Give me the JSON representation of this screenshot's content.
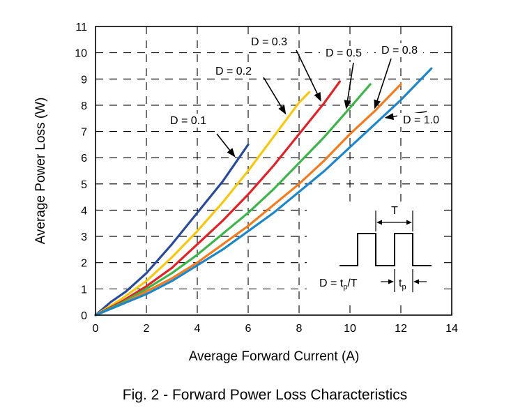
{
  "caption": "Fig. 2 - Forward Power Loss Characteristics",
  "chart_data": {
    "type": "line",
    "title": "",
    "xlabel": "Average Forward Current (A)",
    "ylabel": "Average Power Loss (W)",
    "xlim": [
      0,
      14
    ],
    "ylim": [
      0,
      11
    ],
    "xticks": [
      0,
      2,
      4,
      6,
      8,
      10,
      12,
      14
    ],
    "yticks": [
      0,
      1,
      2,
      3,
      4,
      5,
      6,
      7,
      8,
      9,
      10,
      11
    ],
    "grid": true,
    "series": [
      {
        "name": "D = 0.1",
        "color": "#2a4a9c",
        "x": [
          0,
          0.6,
          1.2,
          2.0,
          3.0,
          4.0,
          5.0,
          6.0
        ],
        "y": [
          0,
          0.5,
          0.9,
          1.6,
          2.7,
          3.9,
          5.1,
          6.5
        ]
      },
      {
        "name": "D = 0.2",
        "color": "#f7c80f",
        "x": [
          0,
          1.0,
          2.0,
          3.0,
          4.0,
          5.0,
          6.0,
          7.0,
          8.0,
          8.4
        ],
        "y": [
          0,
          0.6,
          1.3,
          2.2,
          3.2,
          4.3,
          5.5,
          6.8,
          8.1,
          8.5
        ]
      },
      {
        "name": "D = 0.3",
        "color": "#e32228",
        "x": [
          0,
          1.0,
          2.0,
          3.0,
          4.0,
          5.0,
          6.0,
          7.0,
          8.0,
          9.0,
          9.6
        ],
        "y": [
          0,
          0.5,
          1.1,
          1.8,
          2.7,
          3.6,
          4.6,
          5.7,
          6.9,
          8.1,
          8.9
        ]
      },
      {
        "name": "D = 0.5",
        "color": "#3db54a",
        "x": [
          0,
          1.0,
          2.0,
          3.0,
          4.0,
          5.0,
          6.0,
          7.0,
          8.0,
          9.0,
          10.0,
          10.8
        ],
        "y": [
          0,
          0.45,
          1.0,
          1.6,
          2.3,
          3.1,
          3.9,
          4.8,
          5.8,
          6.8,
          7.9,
          8.8
        ]
      },
      {
        "name": "D = 0.8",
        "color": "#f47b20",
        "x": [
          0,
          1.0,
          2.0,
          3.0,
          4.0,
          5.0,
          6.0,
          7.0,
          8.0,
          9.0,
          10.0,
          11.0,
          12.0
        ],
        "y": [
          0,
          0.4,
          0.9,
          1.4,
          2.0,
          2.7,
          3.4,
          4.2,
          5.0,
          5.9,
          6.9,
          7.8,
          8.8
        ]
      },
      {
        "name": "D = 1.0",
        "color": "#1d87c8",
        "x": [
          0,
          1.0,
          2.0,
          3.0,
          4.0,
          5.0,
          6.0,
          7.0,
          8.0,
          9.0,
          10.0,
          11.0,
          12.0,
          13.2
        ],
        "y": [
          0,
          0.4,
          0.8,
          1.3,
          1.9,
          2.5,
          3.2,
          3.9,
          4.7,
          5.5,
          6.4,
          7.3,
          8.2,
          9.4
        ]
      }
    ],
    "labels": [
      {
        "text": "D = 0.1",
        "series": 0
      },
      {
        "text": "D = 0.2",
        "series": 1
      },
      {
        "text": "D = 0.3",
        "series": 2
      },
      {
        "text": "D = 0.5",
        "series": 3
      },
      {
        "text": "D = 0.8",
        "series": 4
      },
      {
        "text": "D = 1.0",
        "series": 5
      }
    ],
    "inset": {
      "period_label": "T",
      "formula_prefix": "D = t",
      "formula_sub": "p",
      "formula_suffix": "/T",
      "tp_main": "t",
      "tp_sub": "p"
    }
  }
}
